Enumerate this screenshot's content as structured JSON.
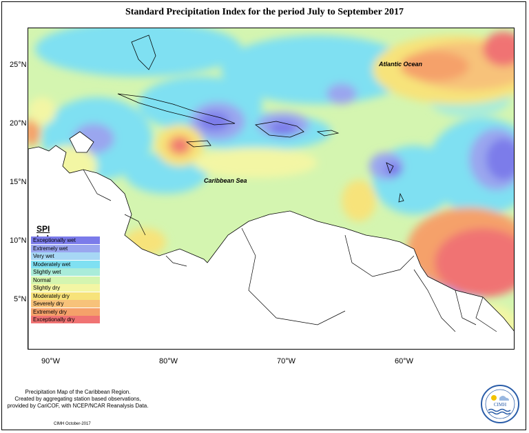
{
  "title": "Standard Precipitation Index for the period July to September 2017",
  "lat_ticks": [
    "25°N",
    "20°N",
    "15°N",
    "10°N",
    "5°N"
  ],
  "lon_ticks": [
    "90°W",
    "80°W",
    "70°W",
    "60°W"
  ],
  "map_labels": {
    "atlantic": "Atlantic Ocean",
    "caribbean": "Caribbean Sea"
  },
  "legend": {
    "title": "SPI Index",
    "items": [
      {
        "label": "Exceptionally wet",
        "color": "#7b7bea"
      },
      {
        "label": "Extremely wet",
        "color": "#9aa6ef"
      },
      {
        "label": "Very wet",
        "color": "#a7d7f5"
      },
      {
        "label": "Moderately wet",
        "color": "#7fe0f2"
      },
      {
        "label": "Slightly wet",
        "color": "#a9ecd9"
      },
      {
        "label": "Normal",
        "color": "#d4f5b0"
      },
      {
        "label": "Slightly dry",
        "color": "#f3f6a4"
      },
      {
        "label": "Moderately dry",
        "color": "#f7e37a"
      },
      {
        "label": "Severely dry",
        "color": "#f7c27a"
      },
      {
        "label": "Extremely dry",
        "color": "#f5a16a"
      },
      {
        "label": "Exceptionally dry",
        "color": "#f07373"
      }
    ]
  },
  "footer": {
    "line1": "Precipitation Map of the Caribbean Region.",
    "line2": "Created by aggregating station based observations,",
    "line3": "provided by CariCOF, with NCEP/NCAR Reanalysis Data."
  },
  "credit": "CIMH October-2017",
  "logo_text": "CIMH"
}
